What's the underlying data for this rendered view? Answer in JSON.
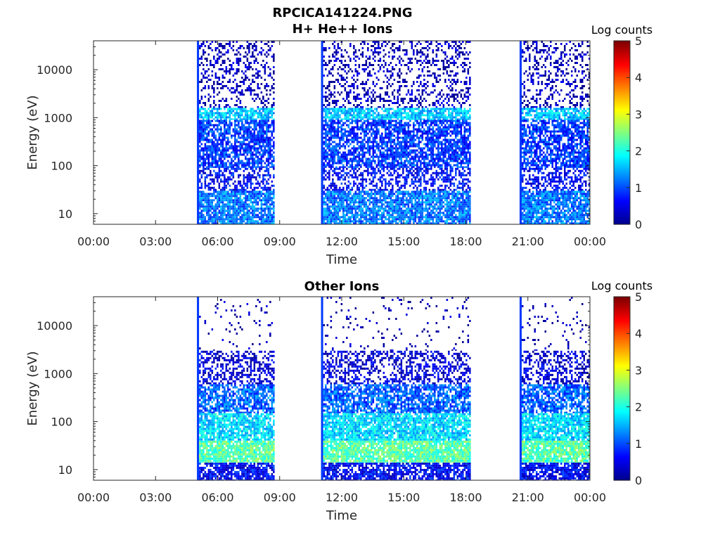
{
  "figure": {
    "title_line1": "RPCICA141224.PNG",
    "title_line2": "H+ He++ Ions"
  },
  "colors": {
    "axis": "#262626",
    "background": "#ffffff",
    "colormap": [
      "#00008f",
      "#0000ff",
      "#0080ff",
      "#00ffff",
      "#80ff80",
      "#ffff00",
      "#ff8000",
      "#ff0000",
      "#800000"
    ]
  },
  "chart_data": [
    {
      "type": "heatmap",
      "title": "H+ He++ Ions",
      "xlabel": "Time",
      "ylabel": "Energy (eV)",
      "x_ticks": [
        "00:00",
        "03:00",
        "06:00",
        "09:00",
        "12:00",
        "15:00",
        "18:00",
        "21:00",
        "00:00"
      ],
      "x_tick_hours": [
        0,
        3,
        6,
        9,
        12,
        15,
        18,
        21,
        24
      ],
      "xlim_hours": [
        0,
        24
      ],
      "y_scale": "log",
      "y_ticks": [
        "10",
        "100",
        "1000",
        "10000"
      ],
      "y_tick_values": [
        10,
        100,
        1000,
        10000
      ],
      "ylim": [
        6,
        40000
      ],
      "colorbar": {
        "label": "Log counts",
        "ticks": [
          "0",
          "1",
          "2",
          "3",
          "4",
          "5"
        ],
        "range": [
          0,
          5
        ],
        "colormap": "jet"
      },
      "data_intervals_hours": [
        [
          5.0,
          8.75
        ],
        [
          11.0,
          18.2
        ],
        [
          20.6,
          24.0
        ]
      ],
      "bands": [
        {
          "e_range": [
            6,
            30
          ],
          "log_counts": 1.2,
          "coverage": 0.85
        },
        {
          "e_range": [
            30,
            90
          ],
          "log_counts": 0.6,
          "coverage": 0.5
        },
        {
          "e_range": [
            90,
            900
          ],
          "log_counts": 0.9,
          "coverage": 0.75
        },
        {
          "e_range": [
            900,
            1600
          ],
          "log_counts": 1.6,
          "coverage": 0.8
        },
        {
          "e_range": [
            1600,
            40000
          ],
          "log_counts": 0.2,
          "coverage": 0.3
        }
      ]
    },
    {
      "type": "heatmap",
      "title": "Other Ions",
      "xlabel": "Time",
      "ylabel": "Energy (eV)",
      "x_ticks": [
        "00:00",
        "03:00",
        "06:00",
        "09:00",
        "12:00",
        "15:00",
        "18:00",
        "21:00",
        "00:00"
      ],
      "x_tick_hours": [
        0,
        3,
        6,
        9,
        12,
        15,
        18,
        21,
        24
      ],
      "xlim_hours": [
        0,
        24
      ],
      "y_scale": "log",
      "y_ticks": [
        "10",
        "100",
        "1000",
        "10000"
      ],
      "y_tick_values": [
        10,
        100,
        1000,
        10000
      ],
      "ylim": [
        6,
        40000
      ],
      "colorbar": {
        "label": "Log counts",
        "ticks": [
          "0",
          "1",
          "2",
          "3",
          "4",
          "5"
        ],
        "range": [
          0,
          5
        ],
        "colormap": "jet"
      },
      "data_intervals_hours": [
        [
          5.0,
          8.75
        ],
        [
          11.0,
          18.2
        ],
        [
          20.6,
          24.0
        ]
      ],
      "bands": [
        {
          "e_range": [
            6,
            14
          ],
          "log_counts": 0.6,
          "coverage": 0.8
        },
        {
          "e_range": [
            14,
            40
          ],
          "log_counts": 2.3,
          "coverage": 0.9
        },
        {
          "e_range": [
            40,
            150
          ],
          "log_counts": 1.7,
          "coverage": 0.85
        },
        {
          "e_range": [
            150,
            600
          ],
          "log_counts": 1.1,
          "coverage": 0.75
        },
        {
          "e_range": [
            600,
            3000
          ],
          "log_counts": 0.4,
          "coverage": 0.45
        },
        {
          "e_range": [
            3000,
            40000
          ],
          "log_counts": 0.1,
          "coverage": 0.05
        }
      ]
    }
  ]
}
